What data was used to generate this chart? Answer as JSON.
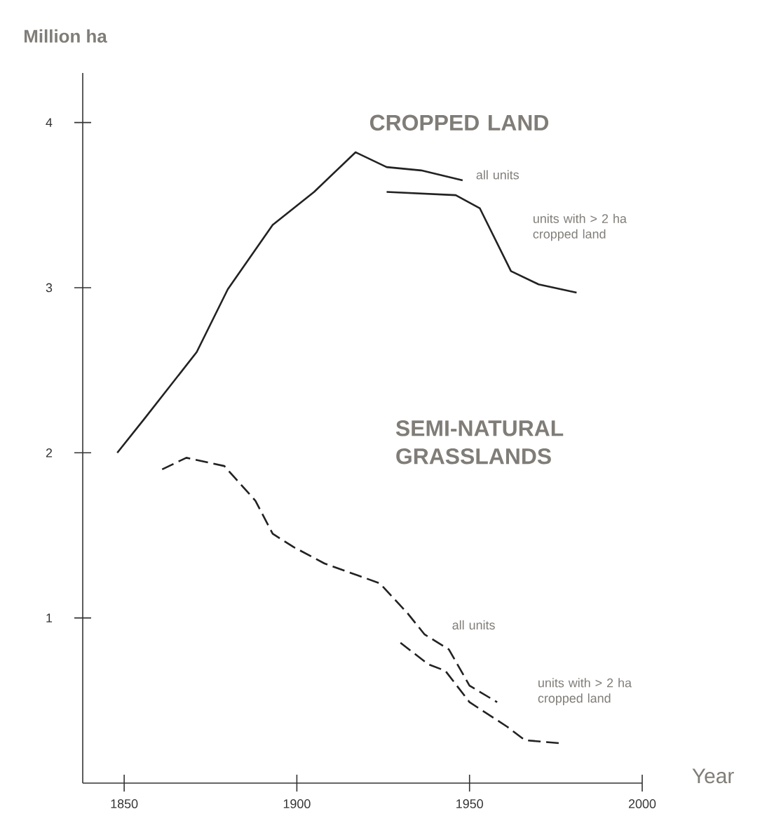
{
  "chart_data": {
    "type": "line",
    "xlabel": "Year",
    "ylabel": "Million ha",
    "annotations": [
      "CROPPED LAND",
      "SEMI-NATURAL GRASSLANDS"
    ],
    "xlim": [
      1838,
      2000
    ],
    "xticks": [
      1850,
      1900,
      1950,
      2000
    ],
    "ylim": [
      0,
      4.3
    ],
    "yticks": [
      1,
      2,
      3,
      4
    ],
    "grid": false,
    "marker": "none",
    "series": [
      {
        "name": "all units",
        "color": "#222222",
        "line_style": "solid",
        "x": [
          1848,
          1856,
          1871,
          1880,
          1893,
          1905,
          1917,
          1926,
          1936,
          1948
        ],
        "values": [
          2.0,
          2.21,
          2.61,
          2.99,
          3.38,
          3.58,
          3.82,
          3.73,
          3.71,
          3.65
        ]
      },
      {
        "name": "units with > 2 ha cropped land",
        "color": "#222222",
        "line_style": "solid",
        "x": [
          1926,
          1946,
          1953,
          1962,
          1970,
          1981
        ],
        "values": [
          3.58,
          3.56,
          3.48,
          3.1,
          3.02,
          2.97
        ]
      },
      {
        "name": "all units",
        "color": "#222222",
        "line_style": "dashed",
        "x": [
          1861,
          1868,
          1879,
          1888,
          1893,
          1899,
          1908,
          1924,
          1932,
          1937,
          1944,
          1950,
          1958
        ],
        "values": [
          1.9,
          1.97,
          1.92,
          1.71,
          1.51,
          1.43,
          1.33,
          1.21,
          1.03,
          0.9,
          0.81,
          0.59,
          0.49
        ]
      },
      {
        "name": "units with > 2 ha cropped land",
        "color": "#222222",
        "line_style": "dashed",
        "x": [
          1930,
          1938,
          1943,
          1950,
          1961,
          1966,
          1977
        ],
        "values": [
          0.85,
          0.72,
          0.68,
          0.49,
          0.34,
          0.26,
          0.24
        ]
      }
    ]
  }
}
